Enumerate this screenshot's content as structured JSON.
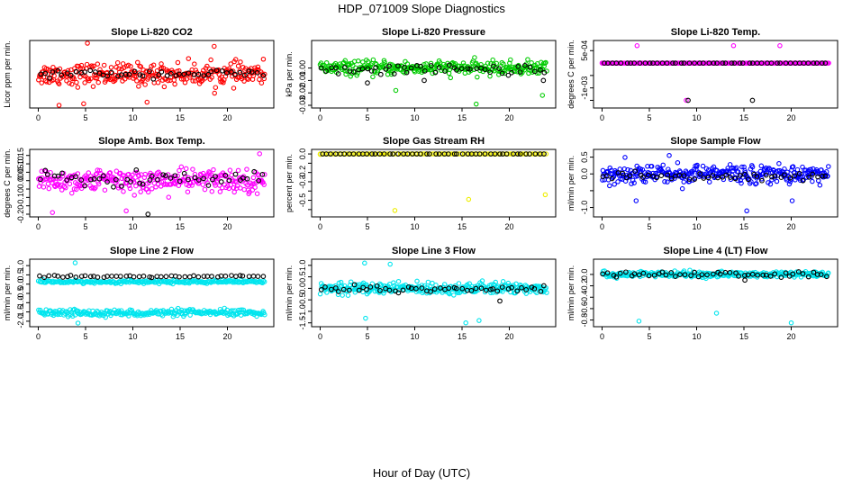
{
  "title": "HDP_071009  Slope Diagnostics",
  "xlabel": "Hour of Day (UTC)",
  "chart_data": [
    {
      "type": "scatter",
      "title": "Slope Li-820 CO2",
      "ylabel": "Licor ppm per min.",
      "xlim": [
        0,
        24
      ],
      "ylim": [
        -1.0,
        1.0
      ],
      "xticks": [
        0,
        5,
        10,
        15,
        20
      ],
      "yticks": [],
      "series": [
        {
          "color": "#ff0000",
          "role": "main",
          "center": 0.0,
          "spread": 0.35,
          "n": 300,
          "offset": 0,
          "outliers": [
            [
              5.2,
              1.0
            ],
            [
              2.2,
              -1.0
            ],
            [
              4.8,
              -0.95
            ],
            [
              18.6,
              0.9
            ],
            [
              11.5,
              -0.9
            ]
          ]
        },
        {
          "color": "#000000",
          "role": "ref",
          "center": 0.02,
          "spread": 0.12,
          "n": 50,
          "offset": 0,
          "outliers": []
        }
      ]
    },
    {
      "type": "scatter",
      "title": "Slope Li-820 Pressure",
      "ylabel": "kPa per min.",
      "xlim": [
        0,
        24
      ],
      "ylim": [
        -0.03,
        0.02
      ],
      "xticks": [
        0,
        5,
        10,
        15,
        20
      ],
      "yticks": [
        -0.03,
        -0.02,
        -0.01,
        0.0
      ],
      "series": [
        {
          "color": "#00cc00",
          "role": "main",
          "center": 0.0,
          "spread": 0.0055,
          "n": 300,
          "offset": 0,
          "outliers": [
            [
              8.0,
              -0.018
            ],
            [
              16.5,
              -0.029
            ],
            [
              23.5,
              -0.022
            ]
          ]
        },
        {
          "color": "#000000",
          "role": "ref",
          "center": -0.001,
          "spread": 0.004,
          "n": 50,
          "offset": 0,
          "outliers": [
            [
              5.0,
              -0.012
            ],
            [
              11.0,
              -0.01
            ],
            [
              23.6,
              -0.01
            ]
          ]
        }
      ]
    },
    {
      "type": "scatter",
      "title": "Slope Li-820 Temp.",
      "ylabel": "degrees C per min.",
      "xlim": [
        0,
        24
      ],
      "ylim": [
        -0.0017,
        0.0008
      ],
      "xticks": [
        0,
        5,
        10,
        15,
        20
      ],
      "yticks": [
        -0.0015,
        -0.001,
        -0.0005,
        0.0005
      ],
      "ytick_labels": [
        "",
        "-1e-03",
        "",
        "5e-04"
      ],
      "series": [
        {
          "color": "#ff00ff",
          "role": "main",
          "center": 0.0,
          "spread": 0.0,
          "n": 300,
          "offset": 0,
          "outliers": [
            [
              3.7,
              0.0007
            ],
            [
              8.9,
              -0.0015
            ],
            [
              13.9,
              0.0007
            ],
            [
              18.8,
              0.0007
            ],
            [
              0.0,
              0.0
            ]
          ]
        },
        {
          "color": "#000000",
          "role": "ref",
          "center": 0.0,
          "spread": 0.0,
          "n": 50,
          "offset": 0,
          "outliers": [
            [
              9.1,
              -0.0015
            ],
            [
              15.9,
              -0.0015
            ]
          ]
        }
      ]
    },
    {
      "type": "scatter",
      "title": "Slope Amb. Box Temp.",
      "ylabel": "degrees C per min.",
      "xlim": [
        0,
        24
      ],
      "ylim": [
        -0.2,
        0.17
      ],
      "xticks": [
        0,
        5,
        10,
        15,
        20
      ],
      "yticks": [
        -0.2,
        -0.15,
        -0.1,
        -0.05,
        0.0,
        0.05,
        0.1,
        0.15
      ],
      "ytick_labels": [
        "-0.20",
        "",
        "-0.10",
        "",
        "0.00",
        "0.05",
        "0.10",
        "0.15"
      ],
      "series": [
        {
          "color": "#ff00ff",
          "role": "main",
          "center": 0.0,
          "spread": 0.07,
          "n": 300,
          "offset": 0,
          "outliers": [
            [
              1.5,
              -0.19
            ],
            [
              9.3,
              -0.18
            ],
            [
              23.4,
              0.16
            ]
          ]
        },
        {
          "color": "#000000",
          "role": "ref",
          "center": 0.01,
          "spread": 0.05,
          "n": 50,
          "offset": 0,
          "outliers": [
            [
              11.6,
              -0.2
            ]
          ]
        }
      ]
    },
    {
      "type": "scatter",
      "title": "Slope Gas Stream RH",
      "ylabel": "percent per min.",
      "xlim": [
        0,
        24
      ],
      "ylim": [
        -0.65,
        0.02
      ],
      "xticks": [
        0,
        5,
        10,
        15,
        20
      ],
      "yticks": [
        -0.6,
        -0.5,
        -0.4,
        -0.3,
        -0.2,
        -0.1,
        0.0
      ],
      "ytick_labels": [
        "",
        "-0.5",
        "",
        "-0.3",
        "-0.2",
        "",
        "0.0"
      ],
      "series": [
        {
          "color": "#eeee00",
          "role": "main",
          "center": 0.0,
          "spread": 0.0,
          "n": 120,
          "offset": 0,
          "outliers": [
            [
              0.0,
              -0.005
            ],
            [
              7.9,
              -0.61
            ],
            [
              15.7,
              -0.49
            ],
            [
              23.8,
              -0.44
            ]
          ]
        },
        {
          "color": "#000000",
          "role": "ref",
          "center": 0.0,
          "spread": 0.0,
          "n": 50,
          "offset": 0,
          "outliers": []
        }
      ]
    },
    {
      "type": "scatter",
      "title": "Slope Sample Flow",
      "ylabel": "ml/min per min.",
      "xlim": [
        0,
        24
      ],
      "ylim": [
        -1.2,
        0.65
      ],
      "xticks": [
        0,
        5,
        10,
        15,
        20
      ],
      "yticks": [
        -1.0,
        -0.5,
        0.0,
        0.5
      ],
      "ytick_labels": [
        "-1.0",
        "",
        "0.0",
        "0.5"
      ],
      "series": [
        {
          "color": "#0000ff",
          "role": "main",
          "center": 0.0,
          "spread": 0.28,
          "n": 320,
          "offset": 0,
          "outliers": [
            [
              15.3,
              -1.1
            ],
            [
              7.1,
              0.55
            ],
            [
              3.6,
              -0.8
            ],
            [
              20.1,
              -0.8
            ]
          ]
        },
        {
          "color": "#000000",
          "role": "ref",
          "center": -0.08,
          "spread": 0.12,
          "n": 50,
          "offset": 0,
          "outliers": []
        }
      ]
    },
    {
      "type": "scatter",
      "title": "Slope Line 2 Flow",
      "ylabel": "ml/min per min.",
      "xlim": [
        0,
        24
      ],
      "ylim": [
        -2.15,
        1.2
      ],
      "xticks": [
        0,
        5,
        10,
        15,
        20
      ],
      "yticks": [
        -2.0,
        -1.5,
        -1.0,
        -0.5,
        0.0,
        0.5,
        1.0
      ],
      "ytick_labels": [
        "-2.0",
        "-1.5",
        "-1.0",
        "-0.5",
        "0.0",
        "0.5",
        "1.0"
      ],
      "series": [
        {
          "color": "#00e5ee",
          "role": "main",
          "center": 0.12,
          "spread": 0.08,
          "n": 220,
          "offset": 0,
          "outliers": [
            [
              3.9,
              1.15
            ]
          ]
        },
        {
          "color": "#00e5ee",
          "role": "main",
          "center": -1.55,
          "spread": 0.18,
          "n": 260,
          "offset": 0,
          "outliers": [
            [
              4.2,
              -2.1
            ]
          ]
        },
        {
          "color": "#000000",
          "role": "ref",
          "center": 0.42,
          "spread": 0.05,
          "n": 50,
          "offset": 0,
          "outliers": []
        }
      ]
    },
    {
      "type": "scatter",
      "title": "Slope Line 3 Flow",
      "ylabel": "ml/min per min.",
      "xlim": [
        0,
        24
      ],
      "ylim": [
        -1.55,
        1.15
      ],
      "xticks": [
        0,
        5,
        10,
        15,
        20
      ],
      "yticks": [
        -1.5,
        -1.0,
        -0.5,
        0.0,
        0.5,
        1.0
      ],
      "ytick_labels": [
        "-1.5",
        "-1.0",
        "-0.5",
        "0.0",
        "0.5",
        "1.0"
      ],
      "series": [
        {
          "color": "#00e5ee",
          "role": "main",
          "center": 0.0,
          "spread": 0.25,
          "n": 320,
          "offset": 0,
          "outliers": [
            [
              15.4,
              -1.5
            ],
            [
              4.7,
              1.1
            ],
            [
              7.4,
              1.05
            ],
            [
              4.8,
              -1.3
            ],
            [
              16.8,
              -1.4
            ]
          ]
        },
        {
          "color": "#000000",
          "role": "ref",
          "center": 0.0,
          "spread": 0.18,
          "n": 50,
          "offset": 0,
          "outliers": [
            [
              19.0,
              -0.55
            ]
          ]
        }
      ]
    },
    {
      "type": "scatter",
      "title": "Slope Line 4 (LT) Flow",
      "ylabel": "ml/min per min.",
      "xlim": [
        0,
        24
      ],
      "ylim": [
        -0.87,
        0.22
      ],
      "xticks": [
        0,
        5,
        10,
        15,
        20
      ],
      "yticks": [
        -0.8,
        -0.6,
        -0.4,
        -0.2,
        0.0
      ],
      "ytick_labels": [
        "-0.8",
        "-0.6",
        "-0.4",
        "-0.2",
        "0.0"
      ],
      "series": [
        {
          "color": "#00e5ee",
          "role": "main",
          "center": 0.0,
          "spread": 0.05,
          "n": 300,
          "offset": 0,
          "outliers": [
            [
              3.9,
              -0.82
            ],
            [
              12.1,
              -0.68
            ],
            [
              20.0,
              -0.85
            ]
          ]
        },
        {
          "color": "#000000",
          "role": "ref",
          "center": 0.0,
          "spread": 0.04,
          "n": 50,
          "offset": 0,
          "outliers": [
            [
              15.1,
              -0.1
            ]
          ]
        }
      ]
    }
  ]
}
